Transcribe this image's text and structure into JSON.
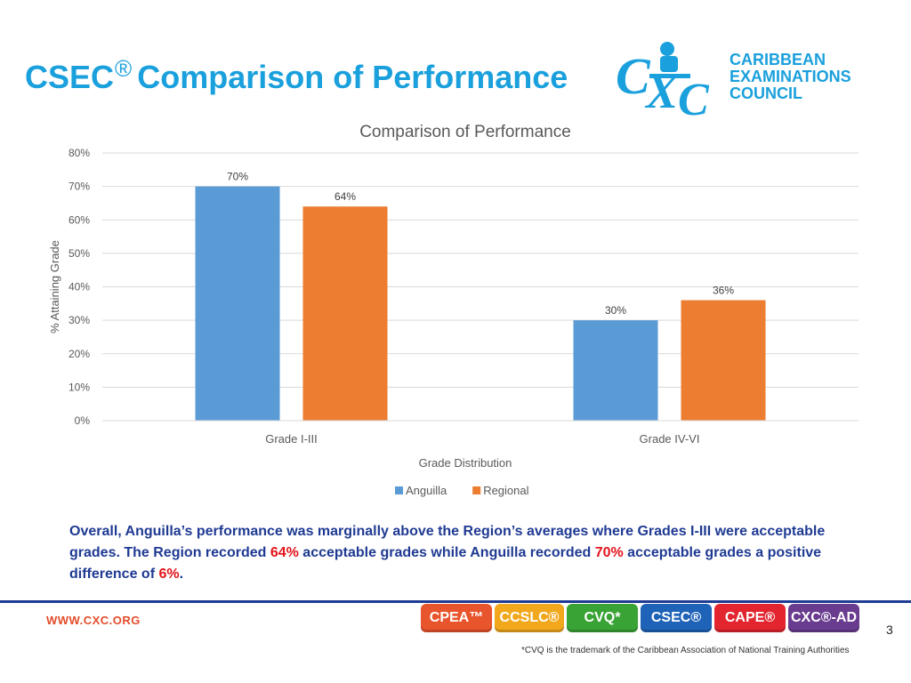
{
  "title": {
    "main": "CSEC",
    "mark": "®",
    "rest": "Comparison of Performance"
  },
  "logo": {
    "line1": "CARIBBEAN",
    "line2": "EXAMINATIONS",
    "line3": "COUNCIL",
    "monogram": "CXC"
  },
  "chart_data": {
    "type": "bar",
    "title": "Comparison of Performance",
    "xlabel": "Grade Distribution",
    "ylabel": "% Attaining Grade",
    "categories": [
      "Grade I-III",
      "Grade IV-VI"
    ],
    "series": [
      {
        "name": "Anguilla",
        "values": [
          70,
          30
        ],
        "color": "#5b9bd5"
      },
      {
        "name": "Regional",
        "values": [
          64,
          36
        ],
        "color": "#ed7d31"
      }
    ],
    "yticks": [
      "0%",
      "10%",
      "20%",
      "30%",
      "40%",
      "50%",
      "60%",
      "70%",
      "80%"
    ],
    "ylim": [
      0,
      80
    ],
    "data_labels": [
      [
        "70%",
        "30%"
      ],
      [
        "64%",
        "36%"
      ]
    ],
    "grid": true,
    "legend": "bottom"
  },
  "summary": {
    "p1": "Overall, Anguilla’s performance was marginally above the Region’s averages where Grades I-III were acceptable grades. The Region recorded ",
    "v1": "64%",
    "p2": " acceptable grades while Anguilla recorded ",
    "v2": "70%",
    "p3": " acceptable grades a positive difference of ",
    "v3": "6%",
    "p4": "."
  },
  "footer": {
    "url": "WWW.CXC.ORG",
    "badges": [
      {
        "label": "CPEA™",
        "color": "#e8542b"
      },
      {
        "label": "CCSLC®",
        "color": "#f2a81d"
      },
      {
        "label": "CVQ*",
        "color": "#3aa335"
      },
      {
        "label": "CSEC®",
        "color": "#1f63b8"
      },
      {
        "label": "CAPE®",
        "color": "#e2252f"
      },
      {
        "label": "CXC®-AD",
        "color": "#6a3c8f"
      }
    ],
    "page_number": "3",
    "footnote": "*CVQ is the trademark of the Caribbean Association of National Training Authorities"
  }
}
